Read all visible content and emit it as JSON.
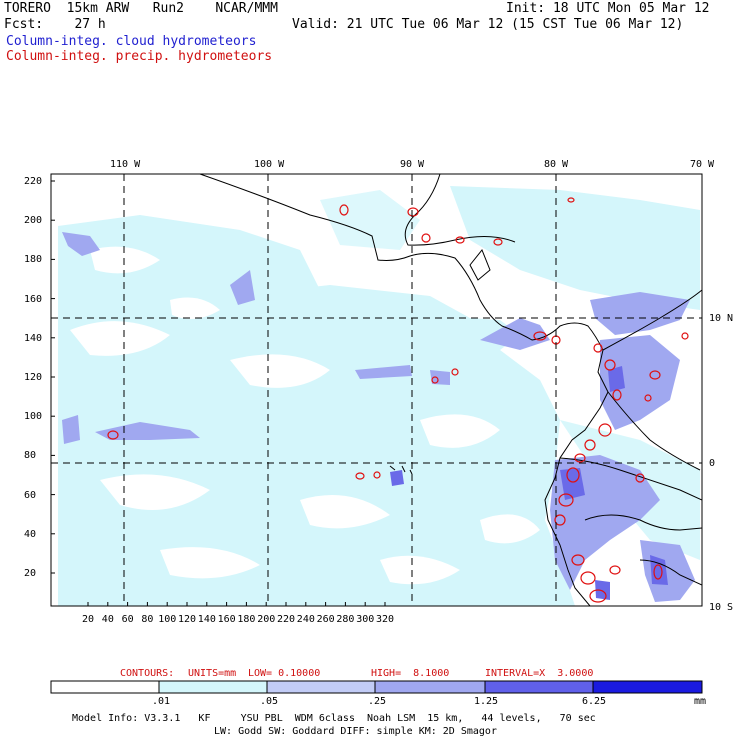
{
  "header": {
    "model_line": "TORERO  15km ARW   Run2    NCAR/MMM",
    "init": "Init: 18 UTC Mon 05 Mar 12",
    "fcst": "Fcst:    27 h",
    "valid": "Valid: 21 UTC Tue 06 Mar 12 (15 CST Tue 06 Mar 12)",
    "field1": "Column-integ. cloud hydrometeors",
    "field2": "Column-integ. precip. hydrometeors"
  },
  "map": {
    "lon_labels": [
      "110 W",
      "100 W",
      "90 W",
      "80 W",
      "70 W"
    ],
    "lat_labels": [
      "10 N",
      "0",
      "10 S"
    ],
    "y_ticks": [
      "220",
      "200",
      "180",
      "160",
      "140",
      "120",
      "100",
      "80",
      "60",
      "40",
      "20"
    ],
    "x_ticks": [
      "20",
      "40",
      "60",
      "80",
      "100",
      "120",
      "140",
      "160",
      "180",
      "200",
      "220",
      "240",
      "260",
      "280",
      "300",
      "320"
    ]
  },
  "contour_info": {
    "contours": "CONTOURS:",
    "units": "UNITS=mm",
    "low": "LOW= 0.10000",
    "high": "HIGH=  8.1000",
    "interval": "INTERVAL=X  3.0000"
  },
  "legend": {
    "bin_labels": [
      ".01",
      ".05",
      ".25",
      "1.25",
      "6.25"
    ],
    "unit": "mm",
    "colors": [
      "#ffffff",
      "#d4f6fb",
      "#c2ccf6",
      "#a0a8f0",
      "#7272ee",
      "#3838e8",
      "#1616e0"
    ]
  },
  "footer": {
    "line1": "Model Info: V3.3.1   KF     YSU PBL  WDM 6class  Noah LSM  15 km,   44 levels,   70 sec",
    "line2": "LW: Godd SW: Goddard DIFF: simple KM: 2D Smagor"
  },
  "colors": {
    "cloud_text": "#1f1fd0",
    "precip_text": "#d01010",
    "precip_contour": "#e01010"
  }
}
